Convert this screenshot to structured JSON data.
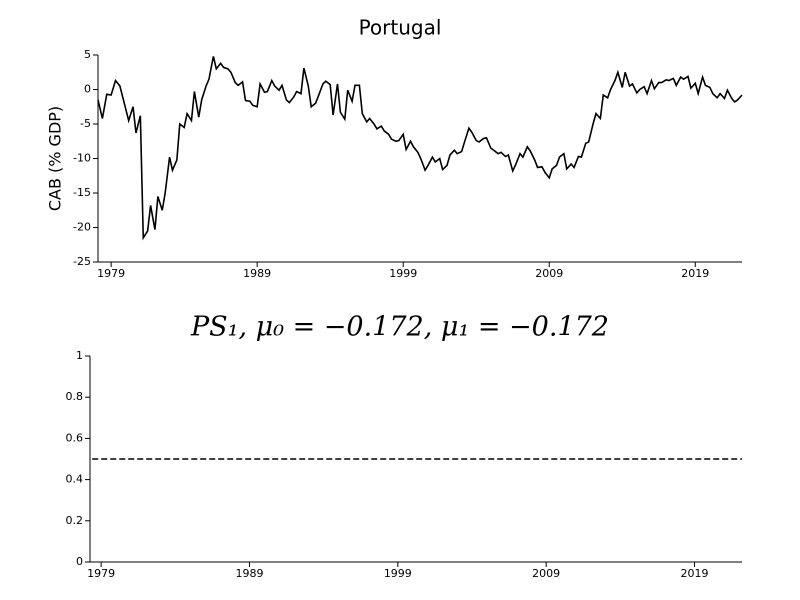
{
  "chart_data": [
    {
      "type": "line",
      "title": "Portugal",
      "y_label": "CAB (% GDP)",
      "x": [
        1978.1,
        1978.4,
        1978.7,
        1979.0,
        1979.3,
        1979.6,
        1979.9,
        1980.2,
        1980.5,
        1980.7,
        1981.0,
        1981.2,
        1981.5,
        1981.7,
        1982.0,
        1982.2,
        1982.5,
        1982.7,
        1983.0,
        1983.2,
        1983.5,
        1983.7,
        1984.0,
        1984.2,
        1984.5,
        1984.7,
        1985.0,
        1985.2,
        1985.5,
        1985.7,
        1986.0,
        1986.2,
        1986.5,
        1986.7,
        1987.0,
        1987.2,
        1987.5,
        1987.7,
        1988.0,
        1988.2,
        1988.5,
        1988.7,
        1989.0,
        1989.2,
        1989.5,
        1989.7,
        1990.0,
        1990.2,
        1990.5,
        1990.7,
        1991.0,
        1991.2,
        1991.5,
        1991.7,
        1992.0,
        1992.2,
        1992.5,
        1992.7,
        1993.0,
        1993.2,
        1993.5,
        1993.7,
        1994.0,
        1994.2,
        1994.5,
        1994.7,
        1995.0,
        1995.2,
        1995.5,
        1995.7,
        1996.0,
        1996.2,
        1996.5,
        1996.7,
        1997.0,
        1997.2,
        1997.5,
        1997.7,
        1998.0,
        1998.2,
        1998.5,
        1998.7,
        1999.0,
        1999.2,
        1999.5,
        1999.7,
        2000.0,
        2000.2,
        2000.5,
        2000.7,
        2001.0,
        2001.2,
        2001.5,
        2001.7,
        2002.0,
        2002.2,
        2002.5,
        2002.7,
        2003.0,
        2003.2,
        2003.5,
        2003.7,
        2004.0,
        2004.2,
        2004.5,
        2004.7,
        2005.0,
        2005.2,
        2005.5,
        2005.7,
        2006.0,
        2006.2,
        2006.5,
        2006.7,
        2007.0,
        2007.2,
        2007.5,
        2007.7,
        2008.0,
        2008.2,
        2008.5,
        2008.7,
        2009.0,
        2009.2,
        2009.5,
        2009.7,
        2010.0,
        2010.2,
        2010.5,
        2010.7,
        2011.0,
        2011.2,
        2011.5,
        2011.7,
        2012.0,
        2012.2,
        2012.5,
        2012.7,
        2013.0,
        2013.2,
        2013.5,
        2013.7,
        2014.0,
        2014.2,
        2014.5,
        2014.7,
        2015.0,
        2015.2,
        2015.5,
        2015.7,
        2016.0,
        2016.2,
        2016.5,
        2016.7,
        2017.0,
        2017.2,
        2017.5,
        2017.7,
        2018.0,
        2018.2,
        2018.5,
        2018.7,
        2019.0,
        2019.2,
        2019.5,
        2019.7,
        2020.0,
        2020.2,
        2020.5,
        2020.7,
        2021.0,
        2021.2,
        2021.5,
        2021.7,
        2021.9,
        2022.2
      ],
      "series": [
        {
          "color": "#000000",
          "linestyle": "solid",
          "values": [
            -1.5,
            -4.2,
            -0.7,
            -0.8,
            1.3,
            0.5,
            -2,
            -4.5,
            -2.5,
            -6.3,
            -3.8,
            -21.5,
            -20.5,
            -16.8,
            -20.3,
            -15.5,
            -17.5,
            -15,
            -9.8,
            -11.7,
            -10.2,
            -5,
            -5.5,
            -3.5,
            -4.5,
            -0.3,
            -4,
            -1.5,
            0.5,
            1.5,
            4.8,
            3,
            3.8,
            3.2,
            3,
            2.5,
            1,
            0.6,
            1.1,
            -1.6,
            -1.7,
            -2.3,
            -2.5,
            0.8,
            -0.4,
            -0.3,
            1.3,
            0.5,
            -0.1,
            0.6,
            -1.5,
            -1.9,
            -1.1,
            -0.3,
            -0.6,
            3.1,
            0.5,
            -2.5,
            -2,
            -0.9,
            0.8,
            1.2,
            0.7,
            -3.7,
            0.8,
            -3.3,
            -4.3,
            -0.1,
            -1.7,
            0.6,
            0.6,
            -3.5,
            -4.7,
            -4.2,
            -5,
            -5.7,
            -5.3,
            -6,
            -6.5,
            -7.2,
            -7.5,
            -7.4,
            -6.5,
            -8.7,
            -7.5,
            -8.3,
            -9.1,
            -10,
            -11.7,
            -11,
            -9.8,
            -10.5,
            -10,
            -11.6,
            -11,
            -9.5,
            -8.8,
            -9.3,
            -9,
            -7.6,
            -5.6,
            -6.2,
            -7.4,
            -7.6,
            -7.1,
            -7,
            -8.5,
            -8.8,
            -9.3,
            -9.1,
            -9.7,
            -9.5,
            -11.8,
            -10.9,
            -9.3,
            -9.8,
            -8.3,
            -8.9,
            -10.2,
            -11.3,
            -11.2,
            -12,
            -12.8,
            -11.5,
            -11,
            -9.8,
            -9.3,
            -11.5,
            -10.8,
            -11.3,
            -9.7,
            -9.8,
            -7.8,
            -7.6,
            -5,
            -3.5,
            -4.2,
            -0.8,
            -1.2,
            0,
            1.3,
            2.5,
            0.3,
            2.5,
            0.5,
            0.8,
            -0.5,
            0,
            0.4,
            -0.6,
            1.3,
            0.1,
            1,
            1,
            1.4,
            1.3,
            1.6,
            0.6,
            1.8,
            1.5,
            1.9,
            0.2,
            0.9,
            -0.6,
            1.8,
            0.6,
            0.3,
            -0.6,
            -1.2,
            -0.6,
            -1.3,
            -0.1,
            -1.3,
            -1.8,
            -1.5,
            -0.8
          ]
        }
      ],
      "xlim": [
        1978.1,
        2022.2
      ],
      "xticks": [
        1979,
        1989,
        1999,
        2009,
        2019
      ],
      "ylim": [
        -25,
        5
      ],
      "yticks": [
        5,
        0,
        -5,
        -10,
        -15,
        -20,
        -25
      ]
    },
    {
      "type": "line",
      "title": "PS₁, μ₀ = −0.172, μ₁ = −0.172",
      "x": [
        1978.4,
        2022.2
      ],
      "series": [
        {
          "color": "#000000",
          "linestyle": "dashed",
          "values": [
            0.5,
            0.5
          ]
        }
      ],
      "xlim": [
        1978.25,
        2022.2
      ],
      "xticks": [
        1979,
        1989,
        1999,
        2009,
        2019
      ],
      "ylim": [
        0,
        1
      ],
      "yticks": [
        0,
        0.2,
        0.4,
        0.6,
        0.8,
        1
      ]
    }
  ]
}
